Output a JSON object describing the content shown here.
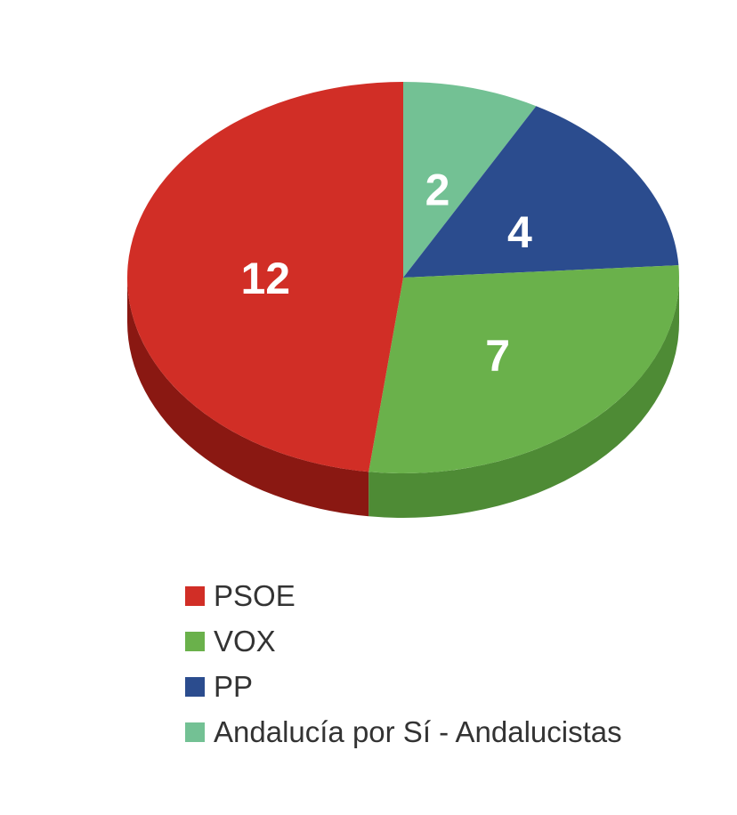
{
  "page": {
    "background_color": "#ffffff"
  },
  "chart_data": {
    "type": "pie",
    "style": "3d",
    "title": "",
    "total": 25,
    "start_angle_deg": 0,
    "direction": "clockwise-from-top-reversed-order",
    "legend_position": "bottom-left",
    "label_color": "#ffffff",
    "slices": [
      {
        "id": "psoe",
        "label": "PSOE",
        "value": 12,
        "color": "#d12e26",
        "side_color": "#8a1812"
      },
      {
        "id": "vox",
        "label": "VOX",
        "value": 7,
        "color": "#6ab14b",
        "side_color": "#4e8b35"
      },
      {
        "id": "pp",
        "label": "PP",
        "value": 4,
        "color": "#2b4c8e",
        "side_color": "#1d3566"
      },
      {
        "id": "axsi",
        "label": "Andalucía por Sí - Andalucistas",
        "value": 2,
        "color": "#73c194",
        "side_color": "#4e9a6e"
      }
    ],
    "data_labels": [
      "12",
      "7",
      "4",
      "2"
    ],
    "legend_text_color": "#333333"
  }
}
